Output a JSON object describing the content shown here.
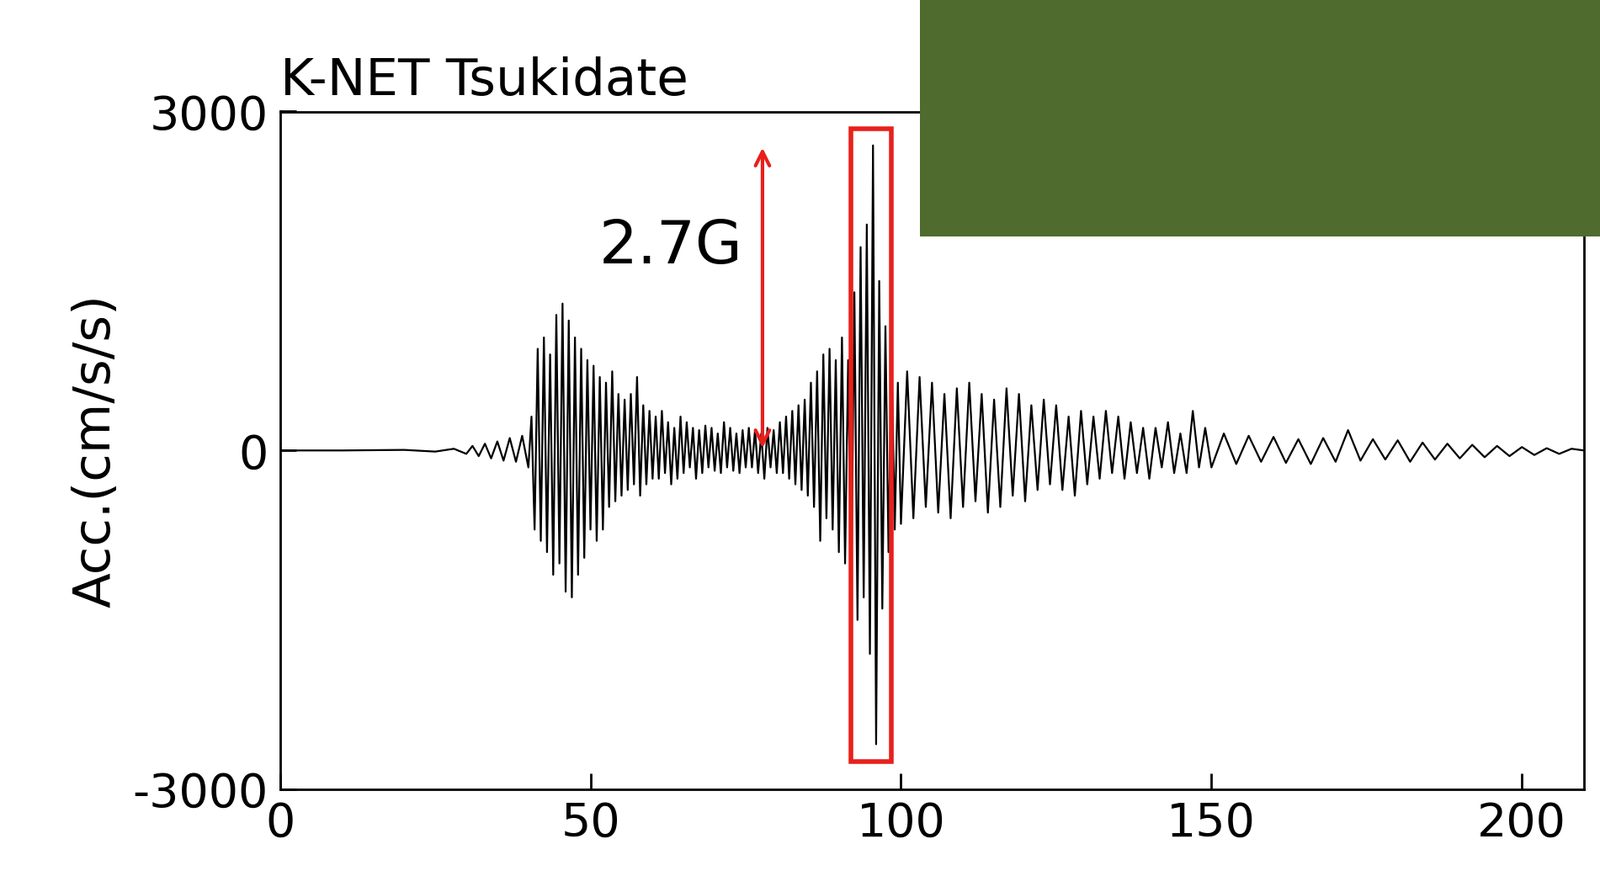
{
  "chart_data": {
    "type": "line",
    "title": "K-NET Tsukidate",
    "y_label": "Acc.(cm/s/s)",
    "annotation": "2.7G",
    "color": "#000000",
    "xlim": [
      0,
      210
    ],
    "ylim": [
      -3000,
      3000
    ],
    "xticks": [
      0,
      50,
      100,
      150,
      200
    ],
    "yticks": [
      -3000,
      0,
      3000
    ],
    "x": [
      0,
      10,
      20,
      25,
      28,
      30,
      31,
      32,
      33,
      34,
      35,
      36,
      37,
      38,
      39,
      40,
      40.5,
      41,
      41.5,
      42,
      42.5,
      43,
      43.5,
      44,
      44.5,
      45,
      45.5,
      46,
      46.5,
      47,
      47.5,
      48,
      48.5,
      49,
      49.5,
      50,
      50.5,
      51,
      51.5,
      52,
      52.5,
      53,
      53.5,
      54,
      54.5,
      55,
      55.5,
      56,
      56.5,
      57,
      57.5,
      58,
      58.5,
      59,
      59.5,
      60,
      60.5,
      61,
      61.5,
      62,
      62.5,
      63,
      63.5,
      64,
      64.5,
      65,
      65.5,
      66,
      66.5,
      67,
      67.5,
      68,
      68.5,
      69,
      69.5,
      70,
      70.5,
      71,
      71.5,
      72,
      72.5,
      73,
      73.5,
      74,
      74.5,
      75,
      75.5,
      76,
      76.5,
      77,
      77.5,
      78,
      78.5,
      79,
      79.5,
      80,
      80.5,
      81,
      81.5,
      82,
      82.5,
      83,
      83.5,
      84,
      84.5,
      85,
      85.5,
      86,
      86.5,
      87,
      87.5,
      88,
      88.5,
      89,
      89.5,
      90,
      90.5,
      91,
      91.5,
      92,
      92.5,
      93,
      93.5,
      94,
      94.5,
      95,
      95.5,
      96,
      96.5,
      97,
      97.5,
      98,
      98.5,
      99,
      99.5,
      100,
      101,
      102,
      103,
      104,
      105,
      106,
      107,
      108,
      109,
      110,
      111,
      112,
      113,
      114,
      115,
      116,
      117,
      118,
      119,
      120,
      121,
      122,
      123,
      124,
      125,
      126,
      127,
      128,
      129,
      130,
      131,
      132,
      133,
      134,
      135,
      136,
      137,
      138,
      139,
      140,
      141,
      142,
      143,
      144,
      145,
      146,
      147,
      148,
      149,
      150,
      152,
      154,
      156,
      158,
      160,
      162,
      164,
      166,
      168,
      170,
      172,
      174,
      176,
      178,
      180,
      182,
      184,
      186,
      188,
      190,
      192,
      194,
      196,
      198,
      200,
      202,
      204,
      206,
      208,
      210
    ],
    "values": [
      0,
      0,
      5,
      -10,
      15,
      -30,
      40,
      -50,
      60,
      -70,
      80,
      -90,
      110,
      -100,
      130,
      -150,
      300,
      -700,
      900,
      -800,
      1000,
      -900,
      850,
      -1100,
      1200,
      -1000,
      1300,
      -1250,
      1150,
      -1300,
      1000,
      -1100,
      900,
      -950,
      800,
      -700,
      750,
      -800,
      650,
      -700,
      600,
      -500,
      700,
      -450,
      500,
      -400,
      450,
      -350,
      500,
      -300,
      650,
      -400,
      400,
      -300,
      350,
      -250,
      300,
      -250,
      350,
      -200,
      250,
      -300,
      200,
      -250,
      300,
      -200,
      250,
      -150,
      200,
      -250,
      180,
      -200,
      220,
      -150,
      200,
      -180,
      150,
      -200,
      250,
      -150,
      200,
      -180,
      150,
      -200,
      180,
      -150,
      200,
      -150,
      180,
      -200,
      150,
      -250,
      200,
      -150,
      180,
      -200,
      250,
      -200,
      300,
      -250,
      350,
      -300,
      400,
      -350,
      450,
      -400,
      600,
      -500,
      700,
      -800,
      850,
      -600,
      900,
      -700,
      800,
      -900,
      1000,
      -1000,
      800,
      -1200,
      1400,
      -1500,
      1800,
      -1300,
      2000,
      -1800,
      2700,
      -2600,
      1500,
      -1400,
      1100,
      -900,
      800,
      -700,
      600,
      -650,
      700,
      -600,
      650,
      -500,
      600,
      -550,
      500,
      -600,
      550,
      -500,
      600,
      -450,
      500,
      -550,
      450,
      -500,
      550,
      -400,
      500,
      -450,
      400,
      -350,
      450,
      -300,
      400,
      -350,
      300,
      -400,
      350,
      -300,
      300,
      -250,
      350,
      -200,
      300,
      -250,
      250,
      -200,
      200,
      -250,
      200,
      -150,
      250,
      -200,
      150,
      -200,
      350,
      -150,
      200,
      -150,
      150,
      -120,
      130,
      -100,
      120,
      -110,
      100,
      -120,
      110,
      -100,
      180,
      -90,
      100,
      -80,
      90,
      -100,
      70,
      -80,
      60,
      -70,
      50,
      -60,
      40,
      -50,
      30,
      -40,
      20,
      -30,
      15,
      0
    ]
  }
}
